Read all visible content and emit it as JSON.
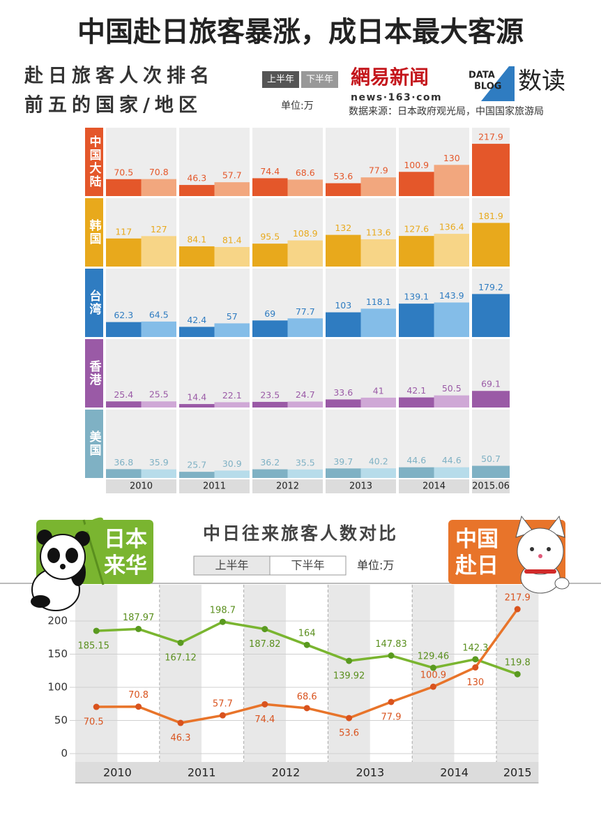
{
  "header": {
    "title": "中国赴日旅客暴涨，成日本最大客源",
    "logo": "網易新闻",
    "logo_url": "news·163·com",
    "datablog": [
      "DATA",
      "BLOG"
    ],
    "brand": "数读",
    "source": "数据来源：日本政府观光局，中国国家旅游局"
  },
  "chart_data": [
    {
      "type": "bar",
      "title": [
        "赴日旅客人次排名",
        "前五的国家/地区"
      ],
      "legend": [
        "上半年",
        "下半年"
      ],
      "legend_colors": [
        "#555555",
        "#999999"
      ],
      "unit": "单位:万",
      "categories": [
        "2010",
        "2011",
        "2012",
        "2013",
        "2014",
        "2015.06"
      ],
      "ylim": [
        0,
        285
      ],
      "groups": [
        {
          "name": "中国大陆",
          "series": [
            {
              "color": "#e4572a",
              "values": [
                70.5,
                46.3,
                74.4,
                53.6,
                100.9,
                217.9
              ]
            },
            {
              "color": "#f2a77e",
              "values": [
                70.8,
                57.7,
                68.6,
                77.9,
                130,
                null
              ]
            }
          ]
        },
        {
          "name": "韩国",
          "series": [
            {
              "color": "#e8a91c",
              "values": [
                117,
                84.1,
                95.5,
                132,
                127.6,
                181.9
              ]
            },
            {
              "color": "#f7d587",
              "values": [
                127,
                81.4,
                108.9,
                113.6,
                136.4,
                null
              ]
            }
          ]
        },
        {
          "name": "台湾",
          "series": [
            {
              "color": "#2f7cc1",
              "values": [
                62.3,
                42.4,
                69,
                103,
                139.1,
                179.2
              ]
            },
            {
              "color": "#84bde8",
              "values": [
                64.5,
                57,
                77.7,
                118.1,
                143.9,
                null
              ]
            }
          ]
        },
        {
          "name": "香港",
          "series": [
            {
              "color": "#9a5aa6",
              "values": [
                25.4,
                14.4,
                23.5,
                33.6,
                42.1,
                69.1
              ]
            },
            {
              "color": "#cfa8d6",
              "values": [
                25.5,
                22.1,
                24.7,
                41,
                50.5,
                null
              ]
            }
          ]
        },
        {
          "name": "美国",
          "series": [
            {
              "color": "#7fb1c4",
              "values": [
                36.8,
                25.7,
                36.2,
                39.7,
                44.6,
                50.7
              ]
            },
            {
              "color": "#b7dcea",
              "values": [
                35.9,
                30.9,
                35.5,
                40.2,
                44.6,
                null
              ]
            }
          ]
        }
      ]
    },
    {
      "type": "line",
      "title": "中日往来旅客人数对比",
      "legend": [
        "上半年",
        "下半年"
      ],
      "legend_colors": [
        "#e8e8e8",
        "#ffffff"
      ],
      "unit": "单位:万",
      "categories": [
        "2010",
        null,
        "2011",
        null,
        "2012",
        null,
        "2013",
        null,
        "2014",
        null,
        "2015"
      ],
      "ylim": [
        0,
        250
      ],
      "yticks": [
        0,
        50,
        100,
        150,
        200
      ],
      "grid": true,
      "series": [
        {
          "name": "日本来华",
          "color": "#7ab530",
          "values": [
            185.15,
            187.97,
            167.12,
            198.7,
            187.82,
            164,
            139.92,
            147.83,
            129.46,
            142.3,
            119.8
          ]
        },
        {
          "name": "中国赴日",
          "color": "#e8742a",
          "values": [
            70.5,
            70.8,
            46.3,
            57.7,
            74.4,
            68.6,
            53.6,
            77.9,
            100.9,
            130,
            217.9
          ]
        }
      ]
    }
  ]
}
